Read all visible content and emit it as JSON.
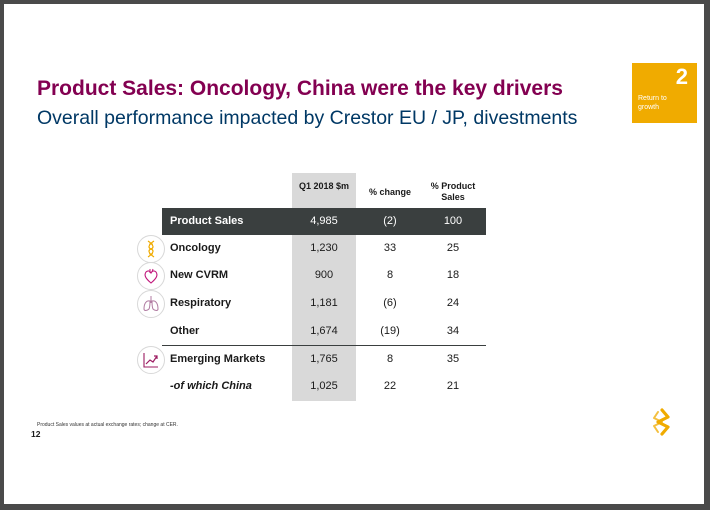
{
  "slide": {
    "title": "Product Sales: Oncology, China were the key drivers",
    "subtitle": "Overall performance impacted by Crestor EU / JP, divestments",
    "badge": {
      "number": "2",
      "text": "Return to growth",
      "color": "#f0ab00"
    },
    "page_number": "12",
    "footnote": "Product Sales values at actual exchange rates; change at CER."
  },
  "table": {
    "headers": {
      "q1": "Q1 2018 $m",
      "change": "% change",
      "pct": "% Product Sales"
    },
    "rows": [
      {
        "label": "Product Sales",
        "q1": "4,985",
        "change": "(2)",
        "pct": "100",
        "icon": ""
      },
      {
        "label": "Oncology",
        "q1": "1,230",
        "change": "33",
        "pct": "25",
        "icon": "dna-icon"
      },
      {
        "label": "New CVRM",
        "q1": "900",
        "change": "8",
        "pct": "18",
        "icon": "heart-icon"
      },
      {
        "label": "Respiratory",
        "q1": "1,181",
        "change": "(6)",
        "pct": "24",
        "icon": "lungs-icon"
      },
      {
        "label": "Other",
        "q1": "1,674",
        "change": "(19)",
        "pct": "34",
        "icon": ""
      },
      {
        "label": "Emerging Markets",
        "q1": "1,765",
        "change": "8",
        "pct": "35",
        "icon": "trend-chart-icon"
      },
      {
        "label": "-of which China",
        "q1": "1,025",
        "change": "22",
        "pct": "21",
        "icon": ""
      }
    ]
  },
  "colors": {
    "title": "#830051",
    "subtitle": "#003865",
    "header_row": "#3a3f3f",
    "highlight_column": "#d9d9d9",
    "logo": "#f0ab00"
  }
}
